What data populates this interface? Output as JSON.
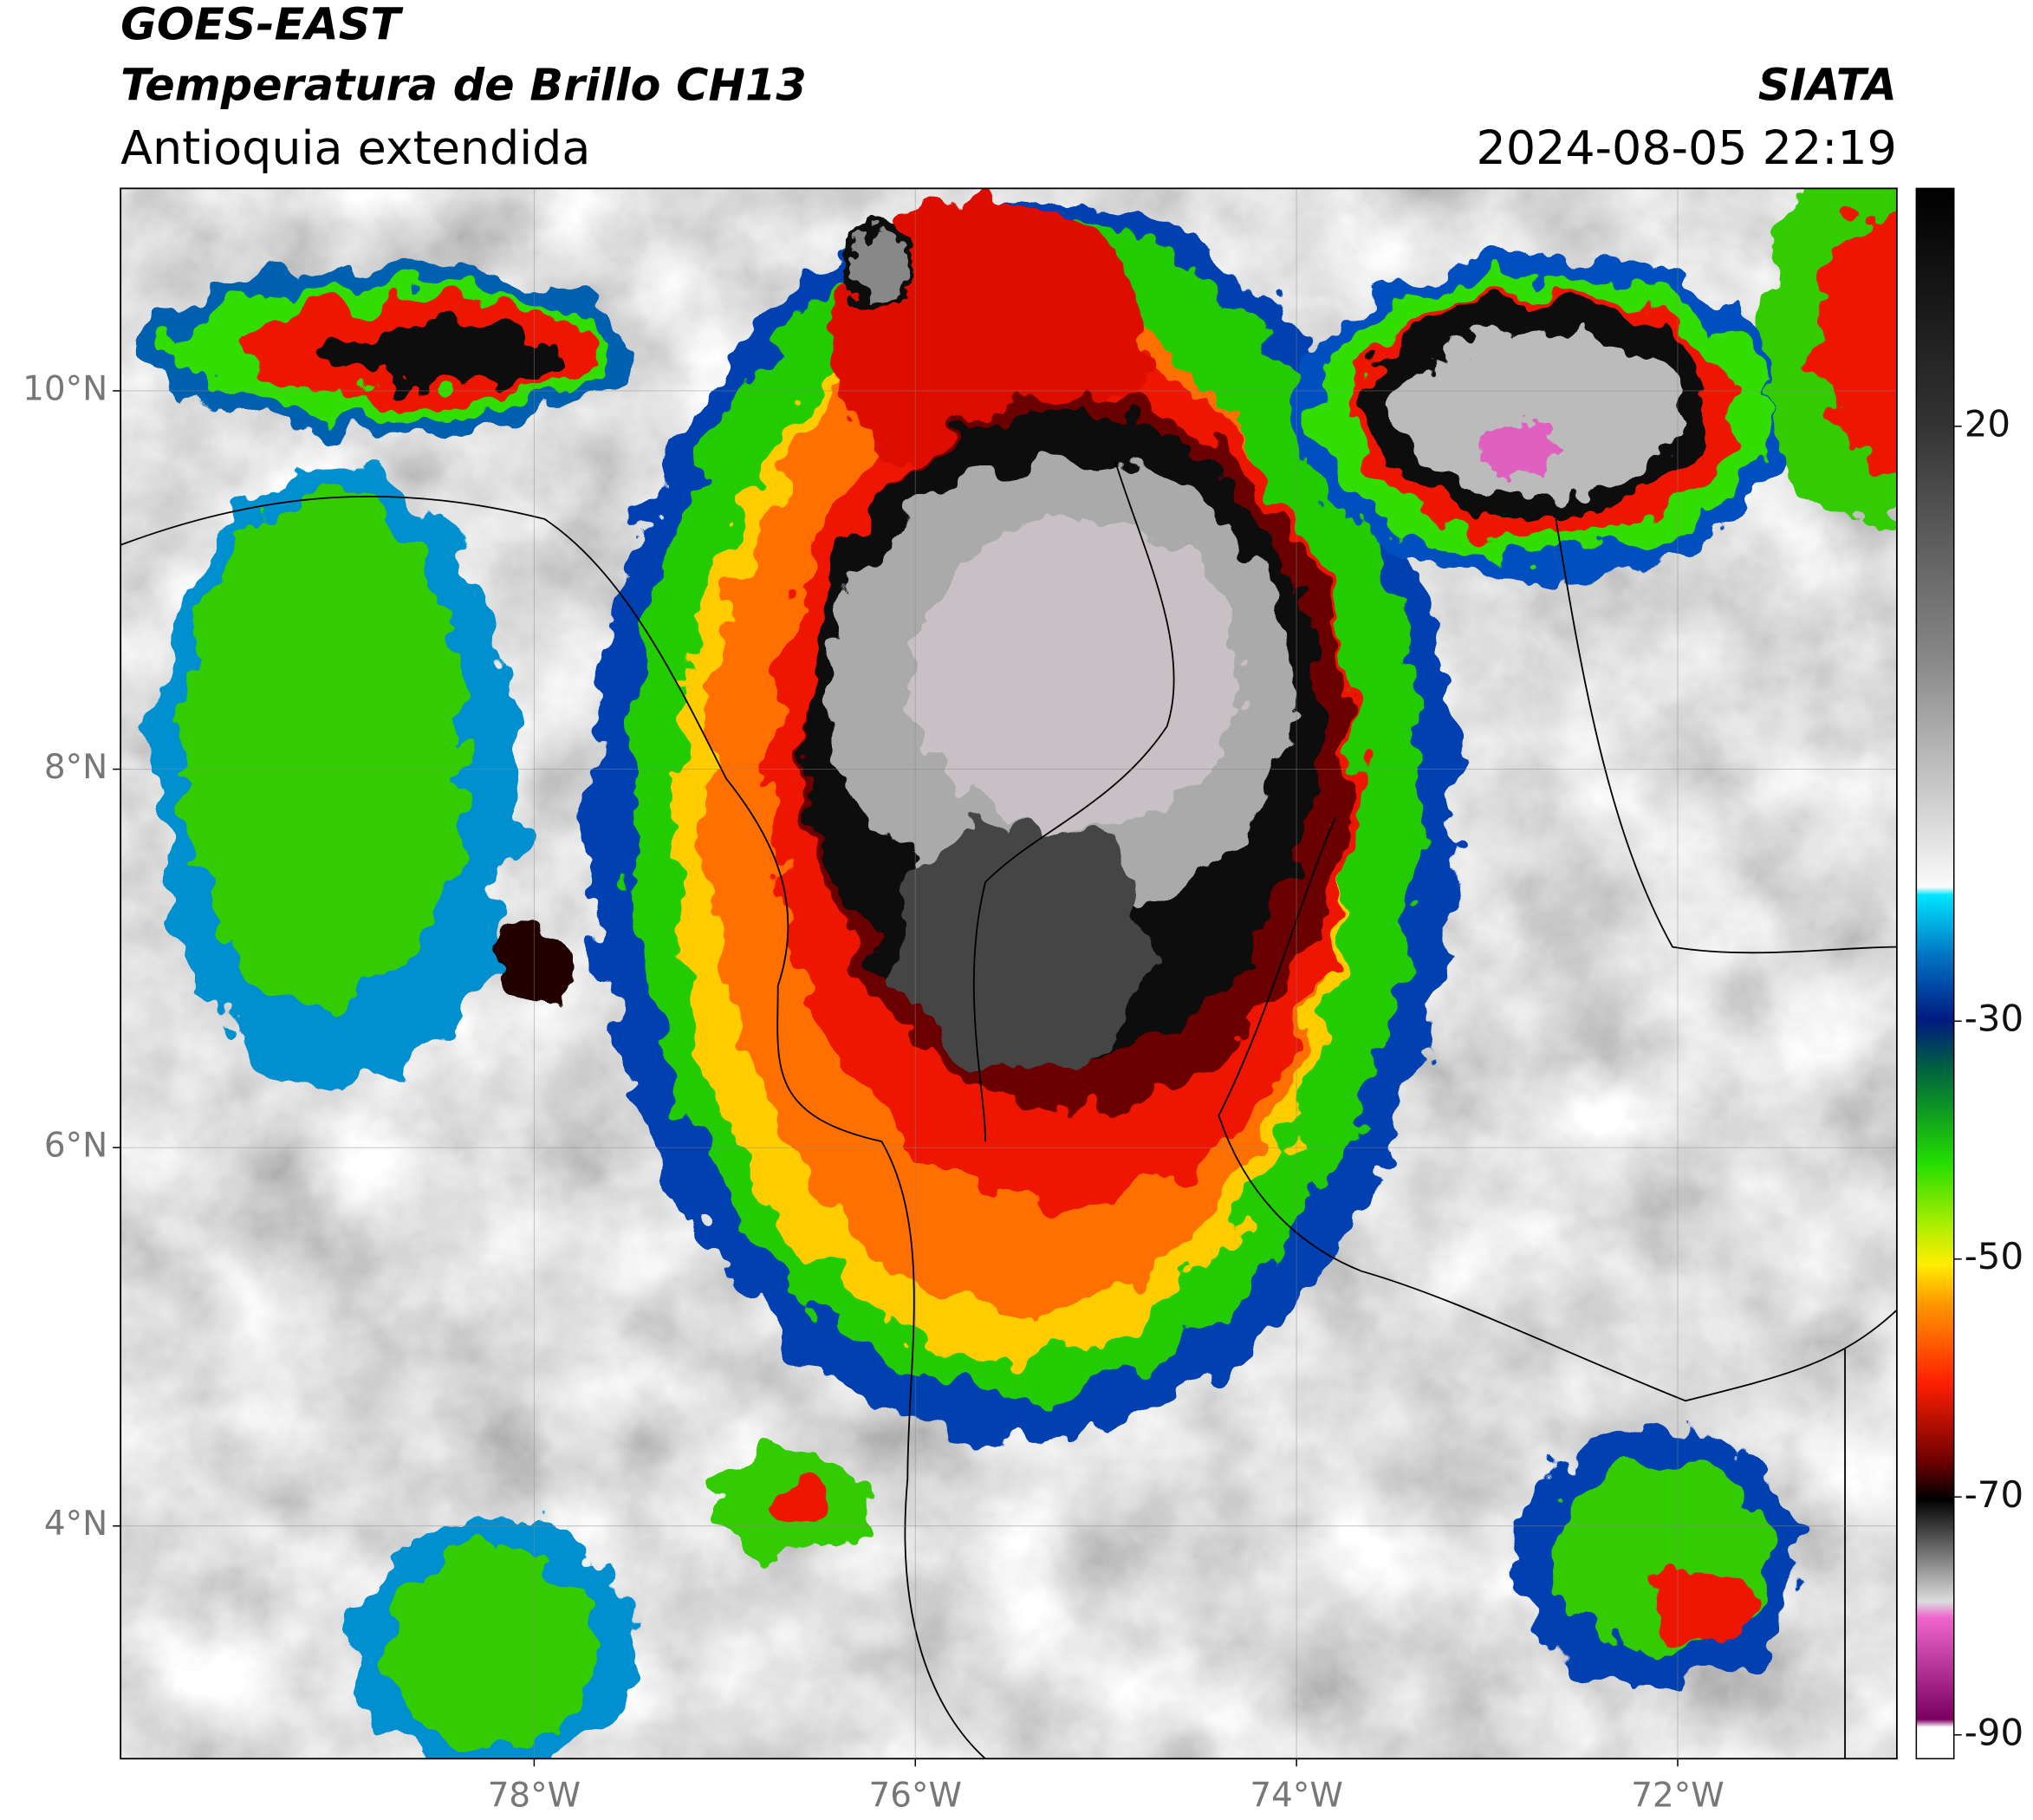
{
  "map": {
    "title": "GOES-EAST",
    "subtitle": "Temperatura de Brillo CH13",
    "region": "Antioquia extendida",
    "source": "SIATA",
    "timestamp": "2024-08-05 22:19",
    "lon_range": [
      -80.17,
      -70.85
    ],
    "lat_range": [
      2.77,
      11.07
    ],
    "lon_ticks": [
      {
        "value": -78,
        "label": "78°W"
      },
      {
        "value": -76,
        "label": "76°W"
      },
      {
        "value": -74,
        "label": "74°W"
      },
      {
        "value": -72,
        "label": "72°W"
      }
    ],
    "lat_ticks": [
      {
        "value": 10,
        "label": "10°N"
      },
      {
        "value": 8,
        "label": "8°N"
      },
      {
        "value": 6,
        "label": "6°N"
      },
      {
        "value": 4,
        "label": "4°N"
      }
    ],
    "colorbar": {
      "range": [
        -92,
        40
      ],
      "ticks": [
        20,
        -30,
        -50,
        -70,
        -90
      ]
    }
  }
}
